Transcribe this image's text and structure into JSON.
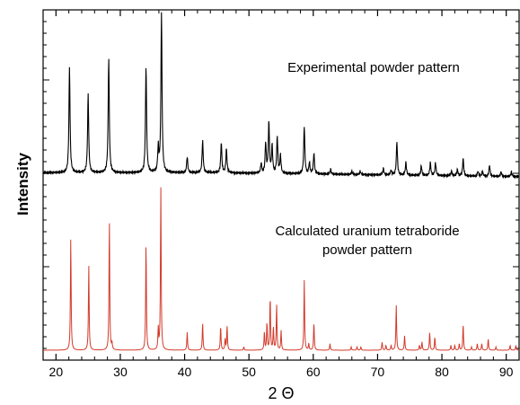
{
  "chart_data": {
    "type": "line",
    "xlabel": "2 Θ",
    "ylabel": "Intensity",
    "xlim": [
      18,
      92
    ],
    "x_ticks": [
      20,
      30,
      40,
      50,
      60,
      70,
      80,
      90
    ],
    "grid": false,
    "series": [
      {
        "name": "Experimental powder pattern",
        "color": "#000000",
        "baseline": 0.06,
        "peaks": [
          {
            "x": 22.1,
            "h": 0.66
          },
          {
            "x": 25.0,
            "h": 0.49
          },
          {
            "x": 28.2,
            "h": 0.72
          },
          {
            "x": 34.0,
            "h": 0.67
          },
          {
            "x": 35.9,
            "h": 0.15
          },
          {
            "x": 36.4,
            "h": 1.0
          },
          {
            "x": 40.4,
            "h": 0.1
          },
          {
            "x": 42.8,
            "h": 0.2
          },
          {
            "x": 45.7,
            "h": 0.19
          },
          {
            "x": 46.5,
            "h": 0.15
          },
          {
            "x": 51.9,
            "h": 0.06
          },
          {
            "x": 52.6,
            "h": 0.19
          },
          {
            "x": 53.1,
            "h": 0.32
          },
          {
            "x": 53.6,
            "h": 0.17
          },
          {
            "x": 54.4,
            "h": 0.23
          },
          {
            "x": 54.9,
            "h": 0.11
          },
          {
            "x": 58.6,
            "h": 0.3
          },
          {
            "x": 59.4,
            "h": 0.07
          },
          {
            "x": 60.1,
            "h": 0.13
          },
          {
            "x": 62.7,
            "h": 0.03
          },
          {
            "x": 66.0,
            "h": 0.02
          },
          {
            "x": 67.3,
            "h": 0.02
          },
          {
            "x": 70.9,
            "h": 0.04
          },
          {
            "x": 72.1,
            "h": 0.03
          },
          {
            "x": 73.0,
            "h": 0.21
          },
          {
            "x": 74.4,
            "h": 0.08
          },
          {
            "x": 76.8,
            "h": 0.06
          },
          {
            "x": 78.2,
            "h": 0.08
          },
          {
            "x": 79.0,
            "h": 0.08
          },
          {
            "x": 81.5,
            "h": 0.03
          },
          {
            "x": 82.4,
            "h": 0.04
          },
          {
            "x": 83.3,
            "h": 0.11
          },
          {
            "x": 85.6,
            "h": 0.03
          },
          {
            "x": 86.3,
            "h": 0.03
          },
          {
            "x": 87.4,
            "h": 0.07
          },
          {
            "x": 89.2,
            "h": 0.03
          },
          {
            "x": 90.8,
            "h": 0.03
          }
        ]
      },
      {
        "name": "Calculated uranium tetraboride powder pattern",
        "color": "#d23a2a",
        "baseline": 0.0,
        "peaks": [
          {
            "x": 22.3,
            "h": 0.69
          },
          {
            "x": 25.1,
            "h": 0.52
          },
          {
            "x": 28.3,
            "h": 0.8
          },
          {
            "x": 28.7,
            "h": 0.04
          },
          {
            "x": 34.0,
            "h": 0.67
          },
          {
            "x": 35.9,
            "h": 0.13
          },
          {
            "x": 36.3,
            "h": 1.0
          },
          {
            "x": 40.4,
            "h": 0.11
          },
          {
            "x": 42.8,
            "h": 0.17
          },
          {
            "x": 45.6,
            "h": 0.15
          },
          {
            "x": 46.3,
            "h": 0.07
          },
          {
            "x": 46.6,
            "h": 0.15
          },
          {
            "x": 49.2,
            "h": 0.02
          },
          {
            "x": 52.4,
            "h": 0.11
          },
          {
            "x": 52.8,
            "h": 0.17
          },
          {
            "x": 53.3,
            "h": 0.33
          },
          {
            "x": 53.8,
            "h": 0.14
          },
          {
            "x": 54.3,
            "h": 0.28
          },
          {
            "x": 55.0,
            "h": 0.12
          },
          {
            "x": 58.6,
            "h": 0.43
          },
          {
            "x": 59.3,
            "h": 0.04
          },
          {
            "x": 60.1,
            "h": 0.17
          },
          {
            "x": 62.6,
            "h": 0.04
          },
          {
            "x": 65.9,
            "h": 0.02
          },
          {
            "x": 66.8,
            "h": 0.02
          },
          {
            "x": 67.4,
            "h": 0.02
          },
          {
            "x": 70.7,
            "h": 0.05
          },
          {
            "x": 71.3,
            "h": 0.03
          },
          {
            "x": 72.1,
            "h": 0.03
          },
          {
            "x": 72.9,
            "h": 0.28
          },
          {
            "x": 74.2,
            "h": 0.09
          },
          {
            "x": 76.5,
            "h": 0.03
          },
          {
            "x": 76.9,
            "h": 0.05
          },
          {
            "x": 78.1,
            "h": 0.11
          },
          {
            "x": 78.9,
            "h": 0.08
          },
          {
            "x": 81.4,
            "h": 0.03
          },
          {
            "x": 82.0,
            "h": 0.03
          },
          {
            "x": 82.7,
            "h": 0.04
          },
          {
            "x": 83.3,
            "h": 0.16
          },
          {
            "x": 84.6,
            "h": 0.02
          },
          {
            "x": 85.5,
            "h": 0.04
          },
          {
            "x": 86.2,
            "h": 0.04
          },
          {
            "x": 87.2,
            "h": 0.07
          },
          {
            "x": 88.4,
            "h": 0.02
          },
          {
            "x": 90.6,
            "h": 0.03
          },
          {
            "x": 91.5,
            "h": 0.03
          }
        ]
      }
    ],
    "annotations": [
      {
        "text": "Experimental powder pattern"
      },
      {
        "text": "Calculated uranium tetraboride"
      },
      {
        "text": "powder pattern"
      }
    ]
  }
}
